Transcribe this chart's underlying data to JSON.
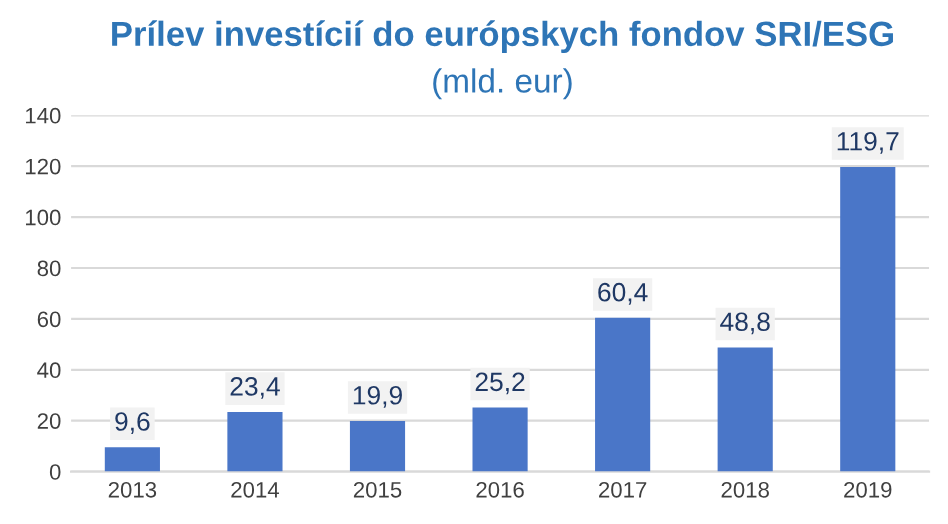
{
  "chart_data": {
    "type": "bar",
    "title": "Prílev investícií do európskych fondov SRI/ESG",
    "subtitle": "(mld. eur)",
    "categories": [
      "2013",
      "2014",
      "2015",
      "2016",
      "2017",
      "2018",
      "2019"
    ],
    "values": [
      9.6,
      23.4,
      19.9,
      25.2,
      60.4,
      48.8,
      119.7
    ],
    "value_labels": [
      "9,6",
      "23,4",
      "19,9",
      "25,2",
      "60,4",
      "48,8",
      "119,7"
    ],
    "color": "#4a76c8",
    "ylim": [
      0,
      140
    ],
    "yticks": [
      0,
      20,
      40,
      60,
      80,
      100,
      120,
      140
    ],
    "grid": "y"
  }
}
